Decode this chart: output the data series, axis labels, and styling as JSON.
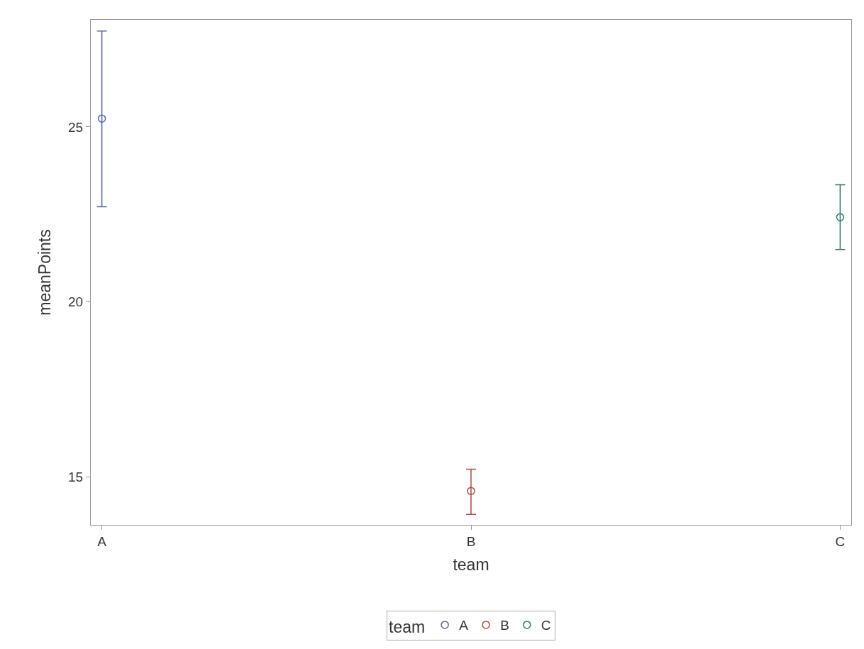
{
  "chart_data": {
    "type": "scatter",
    "xlabel": "team",
    "ylabel": "meanPoints",
    "legend_title": "team",
    "categories": [
      "A",
      "B",
      "C"
    ],
    "series": [
      {
        "name": "A",
        "color": "#5563a8",
        "values": [
          25.24,
          null,
          null
        ],
        "errors": [
          [
            22.72,
            27.74
          ],
          null,
          null
        ]
      },
      {
        "name": "B",
        "color": "#b24a3c",
        "values": [
          null,
          14.6,
          null
        ],
        "errors": [
          null,
          [
            13.93,
            15.22
          ],
          null
        ]
      },
      {
        "name": "C",
        "color": "#217a6a",
        "values": [
          null,
          null,
          22.42
        ],
        "errors": [
          null,
          null,
          [
            21.5,
            23.35
          ]
        ]
      }
    ],
    "ylim": [
      13.63,
      28.06
    ],
    "yticks": [
      15,
      20,
      25
    ],
    "grid": false,
    "legend": "bottom",
    "marker": "circle"
  }
}
